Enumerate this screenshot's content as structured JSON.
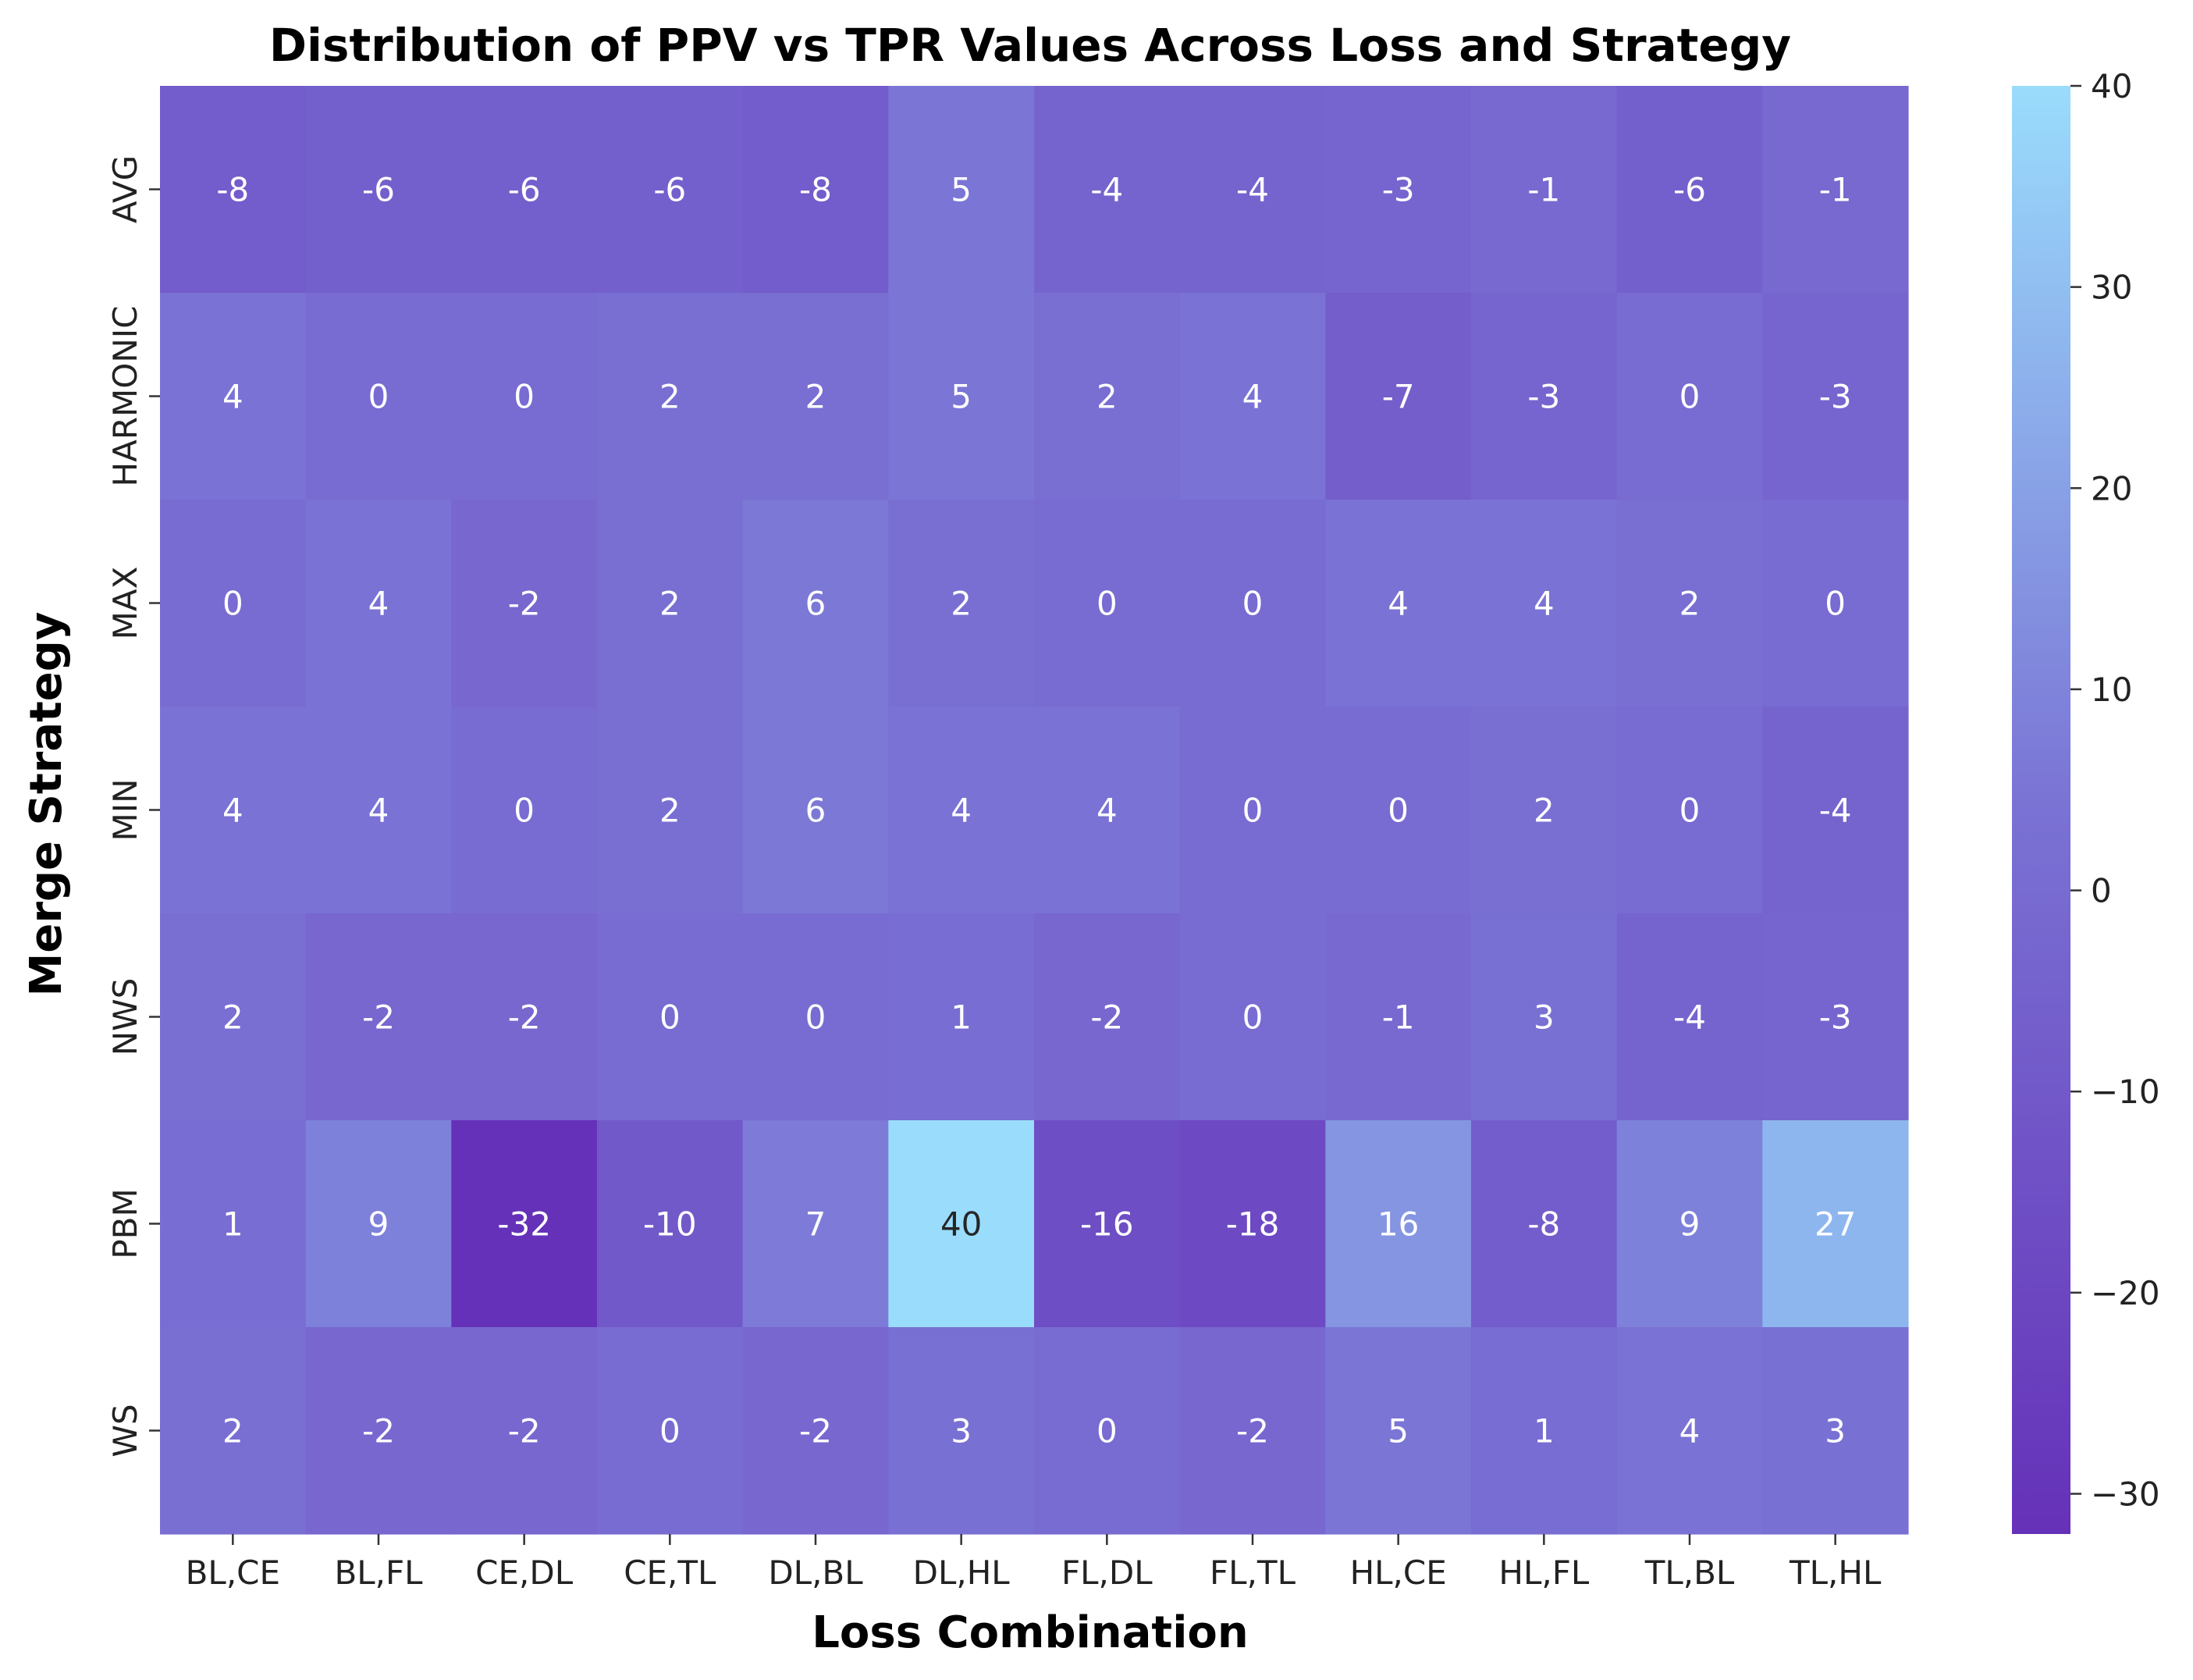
{
  "chart_data": {
    "type": "heatmap",
    "title": "Distribution of PPV vs TPR Values Across Loss and Strategy",
    "xlabel": "Loss Combination",
    "ylabel": "Merge Strategy",
    "x_categories": [
      "BL,CE",
      "BL,FL",
      "CE,DL",
      "CE,TL",
      "DL,BL",
      "DL,HL",
      "FL,DL",
      "FL,TL",
      "HL,CE",
      "HL,FL",
      "TL,BL",
      "TL,HL"
    ],
    "y_categories": [
      "AVG",
      "HARMONIC",
      "MAX",
      "MIN",
      "NWS",
      "PBM",
      "WS"
    ],
    "values": [
      [
        -8,
        -6,
        -6,
        -6,
        -8,
        5,
        -4,
        -4,
        -3,
        -1,
        -6,
        -1
      ],
      [
        4,
        0,
        0,
        2,
        2,
        5,
        2,
        4,
        -7,
        -3,
        0,
        -3
      ],
      [
        0,
        4,
        -2,
        2,
        6,
        2,
        0,
        0,
        4,
        4,
        2,
        0
      ],
      [
        4,
        4,
        0,
        2,
        6,
        4,
        4,
        0,
        0,
        2,
        0,
        -4
      ],
      [
        2,
        -2,
        -2,
        0,
        0,
        1,
        -2,
        0,
        -1,
        3,
        -4,
        -3
      ],
      [
        1,
        9,
        -32,
        -10,
        7,
        40,
        -16,
        -18,
        16,
        -8,
        9,
        27
      ],
      [
        2,
        -2,
        -2,
        0,
        -2,
        3,
        0,
        -2,
        5,
        1,
        4,
        3
      ]
    ],
    "colorbar": {
      "min": -32,
      "max": 40,
      "ticks": [
        40,
        30,
        20,
        10,
        0,
        -10,
        -20,
        -30
      ],
      "colors": [
        "#6531b8",
        "#7a72d4",
        "#9adcfc"
      ]
    },
    "annotations": true,
    "grid": false
  }
}
